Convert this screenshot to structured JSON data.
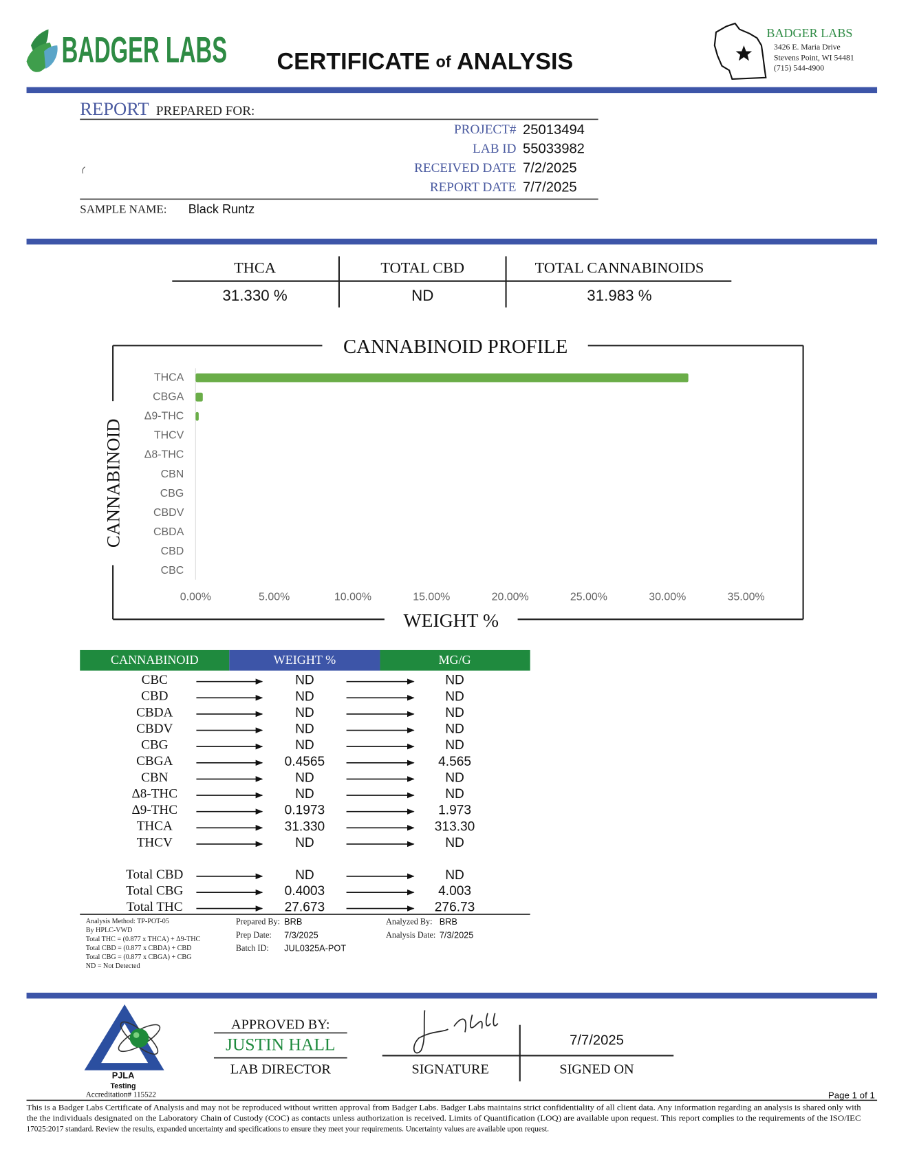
{
  "header": {
    "brand": "BADGER LABS",
    "title_parts": [
      "CERTIFICATE",
      "of",
      "ANALYSIS"
    ],
    "lab_name": "BADGER LABS",
    "address_lines": [
      "3426 E. Maria Drive",
      "Stevens Point, WI 54481",
      "(715) 544-4900"
    ]
  },
  "report": {
    "heading": "REPORT",
    "heading_rest": "PREPARED FOR:",
    "fields": [
      {
        "label": "PROJECT#",
        "value": "25013494"
      },
      {
        "label": "LAB ID",
        "value": "55033982"
      },
      {
        "label": "RECEIVED DATE",
        "value": "7/2/2025"
      },
      {
        "label": "REPORT DATE",
        "value": "7/7/2025"
      }
    ],
    "sample_label": "SAMPLE NAME:",
    "sample_name": "Black Runtz"
  },
  "summary": [
    {
      "label": "THCA",
      "value": "31.330 %"
    },
    {
      "label": "TOTAL CBD",
      "value": "ND"
    },
    {
      "label": "TOTAL CANNABINOIDS",
      "value": "31.983 %"
    }
  ],
  "chart_data": {
    "type": "bar",
    "orientation": "horizontal",
    "title": "CANNABINOID PROFILE",
    "x_label": "WEIGHT %",
    "y_label": "CANNABINOID",
    "categories": [
      "THCA",
      "CBGA",
      "Δ9-THC",
      "THCV",
      "Δ8-THC",
      "CBN",
      "CBG",
      "CBDV",
      "CBDA",
      "CBD",
      "CBC"
    ],
    "values": [
      31.33,
      0.4565,
      0.1973,
      0,
      0,
      0,
      0,
      0,
      0,
      0,
      0
    ],
    "color": "#6aad48",
    "xlim": [
      0,
      35
    ],
    "xticks": [
      {
        "value": 0,
        "label": "0.00%"
      },
      {
        "value": 5,
        "label": "5.00%"
      },
      {
        "value": 10,
        "label": "10.00%"
      },
      {
        "value": 15,
        "label": "15.00%"
      },
      {
        "value": 20,
        "label": "20.00%"
      },
      {
        "value": 25,
        "label": "25.00%"
      },
      {
        "value": 30,
        "label": "30.00%"
      },
      {
        "value": 35,
        "label": "35.00%"
      }
    ],
    "grid": false
  },
  "table": {
    "headers": [
      "CANNABINOID",
      "WEIGHT %",
      "MG/G"
    ],
    "rows": [
      [
        "CBC",
        "ND",
        "ND"
      ],
      [
        "CBD",
        "ND",
        "ND"
      ],
      [
        "CBDA",
        "ND",
        "ND"
      ],
      [
        "CBDV",
        "ND",
        "ND"
      ],
      [
        "CBG",
        "ND",
        "ND"
      ],
      [
        "CBGA",
        "0.4565",
        "4.565"
      ],
      [
        "CBN",
        "ND",
        "ND"
      ],
      [
        "Δ8-THC",
        "ND",
        "ND"
      ],
      [
        "Δ9-THC",
        "0.1973",
        "1.973"
      ],
      [
        "THCA",
        "31.330",
        "313.30"
      ],
      [
        "THCV",
        "ND",
        "ND"
      ]
    ],
    "totals": [
      [
        "Total CBD",
        "ND",
        "ND"
      ],
      [
        "Total CBG",
        "0.4003",
        "4.003"
      ],
      [
        "Total THC",
        "27.673",
        "276.73"
      ]
    ]
  },
  "notes": {
    "method_lines": [
      "Analysis Method: TP-POT-05",
      "By HPLC-VWD",
      "Total THC = (0.877 x  THCA) + Δ9-THC",
      "Total CBD = (0.877 x  CBDA) + CBD",
      "Total CBG = (0.877 x  CBGA) + CBG",
      "ND = Not Detected"
    ],
    "prep": [
      {
        "label": "Prepared By:",
        "value": "BRB"
      },
      {
        "label": "Prep Date:",
        "value": "7/3/2025"
      },
      {
        "label": "Batch ID:",
        "value": "JUL0325A-POT"
      }
    ],
    "analysis": [
      {
        "label": "Analyzed By:",
        "value": "BRB"
      },
      {
        "label": "Analysis Date:",
        "value": "7/3/2025"
      }
    ]
  },
  "footer": {
    "approved_label": "APPROVED BY:",
    "approver": "JUSTIN HALL",
    "role": "LAB DIRECTOR",
    "signature_label": "SIGNATURE",
    "signed_date": "7/7/2025",
    "signed_label": "SIGNED ON",
    "pjla": "PJLA",
    "pjla_sub": "Testing",
    "accreditation": "Accreditation# 115522",
    "page": "Page 1 of 1",
    "disclaimer": [
      "This is a Badger Labs Certificate of Analysis and may not be reproduced without written approval from Badger Labs. Badger Labs maintains strict confidentiality of all client data. Any information regarding an analysis is shared only with",
      "the the individuals designated on the Laboratory Chain of Custody (COC) as contacts unless authorization is received. Limits of Quantification (LOQ) are available upon request. This report complies to the requirements of the ISO/IEC",
      "17025:2017 standard. Review the results, expanded uncertainty and specifications to ensure they meet your requirements. Uncertainty values are available upon request."
    ]
  }
}
